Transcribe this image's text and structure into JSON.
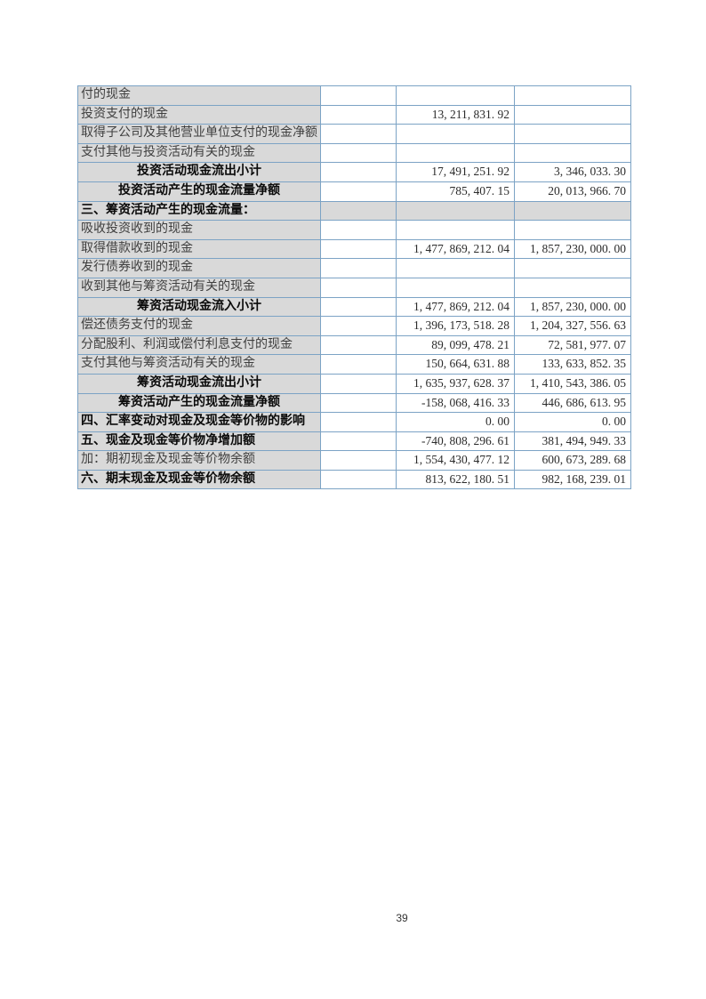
{
  "page": {
    "number": "39"
  },
  "colors": {
    "table_border": "#7CA3C5",
    "row_label_background": "#D9D9D9",
    "page_background": "#FFFFFF"
  },
  "table": {
    "description": "cash-flow-statement-continued",
    "rows": [
      {
        "label": "付的现金",
        "bold": false,
        "align": "left",
        "section": false,
        "values": [
          "",
          "",
          ""
        ]
      },
      {
        "label": "投资支付的现金",
        "bold": false,
        "align": "left",
        "section": false,
        "values": [
          "",
          "13, 211, 831. 92",
          ""
        ]
      },
      {
        "label": "取得子公司及其他营业单位支付的现金净额",
        "bold": false,
        "align": "left",
        "section": false,
        "values": [
          "",
          "",
          ""
        ]
      },
      {
        "label": "支付其他与投资活动有关的现金",
        "bold": false,
        "align": "left",
        "section": false,
        "values": [
          "",
          "",
          ""
        ]
      },
      {
        "label": "投资活动现金流出小计",
        "bold": true,
        "align": "center",
        "section": false,
        "values": [
          "",
          "17, 491, 251. 92",
          "3, 346, 033. 30"
        ]
      },
      {
        "label": "投资活动产生的现金流量净额",
        "bold": true,
        "align": "center",
        "section": false,
        "values": [
          "",
          "785, 407. 15",
          "20, 013, 966. 70"
        ]
      },
      {
        "label": "三、筹资活动产生的现金流量：",
        "bold": true,
        "align": "left",
        "section": true,
        "values": [
          "",
          "",
          ""
        ]
      },
      {
        "label": "吸收投资收到的现金",
        "bold": false,
        "align": "left",
        "section": false,
        "values": [
          "",
          "",
          ""
        ]
      },
      {
        "label": "取得借款收到的现金",
        "bold": false,
        "align": "left",
        "section": false,
        "values": [
          "",
          "1, 477, 869, 212. 04",
          "1, 857, 230, 000. 00"
        ]
      },
      {
        "label": "发行债券收到的现金",
        "bold": false,
        "align": "left",
        "section": false,
        "values": [
          "",
          "",
          ""
        ]
      },
      {
        "label": "收到其他与筹资活动有关的现金",
        "bold": false,
        "align": "left",
        "section": false,
        "values": [
          "",
          "",
          ""
        ]
      },
      {
        "label": "筹资活动现金流入小计",
        "bold": true,
        "align": "center",
        "section": false,
        "values": [
          "",
          "1, 477, 869, 212. 04",
          "1, 857, 230, 000. 00"
        ]
      },
      {
        "label": "偿还债务支付的现金",
        "bold": false,
        "align": "left",
        "section": false,
        "values": [
          "",
          "1, 396, 173, 518. 28",
          "1, 204, 327, 556. 63"
        ]
      },
      {
        "label": "分配股利、利润或偿付利息支付的现金",
        "bold": false,
        "align": "left",
        "section": false,
        "values": [
          "",
          "89, 099, 478. 21",
          "72, 581, 977. 07"
        ]
      },
      {
        "label": "支付其他与筹资活动有关的现金",
        "bold": false,
        "align": "left",
        "section": false,
        "values": [
          "",
          "150, 664, 631. 88",
          "133, 633, 852. 35"
        ]
      },
      {
        "label": "筹资活动现金流出小计",
        "bold": true,
        "align": "center",
        "section": false,
        "values": [
          "",
          "1, 635, 937, 628. 37",
          "1, 410, 543, 386. 05"
        ]
      },
      {
        "label": "筹资活动产生的现金流量净额",
        "bold": true,
        "align": "center",
        "section": false,
        "values": [
          "",
          "-158, 068, 416. 33",
          "446, 686, 613. 95"
        ]
      },
      {
        "label": "四、汇率变动对现金及现金等价物的影响",
        "bold": true,
        "align": "left",
        "section": false,
        "values": [
          "",
          "0. 00",
          "0. 00"
        ]
      },
      {
        "label": "五、现金及现金等价物净增加额",
        "bold": true,
        "align": "left",
        "section": false,
        "values": [
          "",
          "-740, 808, 296. 61",
          "381, 494, 949. 33"
        ]
      },
      {
        "label": "加：期初现金及现金等价物余额",
        "bold": false,
        "align": "left",
        "section": false,
        "values": [
          "",
          "1, 554, 430, 477. 12",
          "600, 673, 289. 68"
        ]
      },
      {
        "label": "六、期末现金及现金等价物余额",
        "bold": true,
        "align": "left",
        "section": false,
        "values": [
          "",
          "813, 622, 180. 51",
          "982, 168, 239. 01"
        ]
      }
    ]
  }
}
